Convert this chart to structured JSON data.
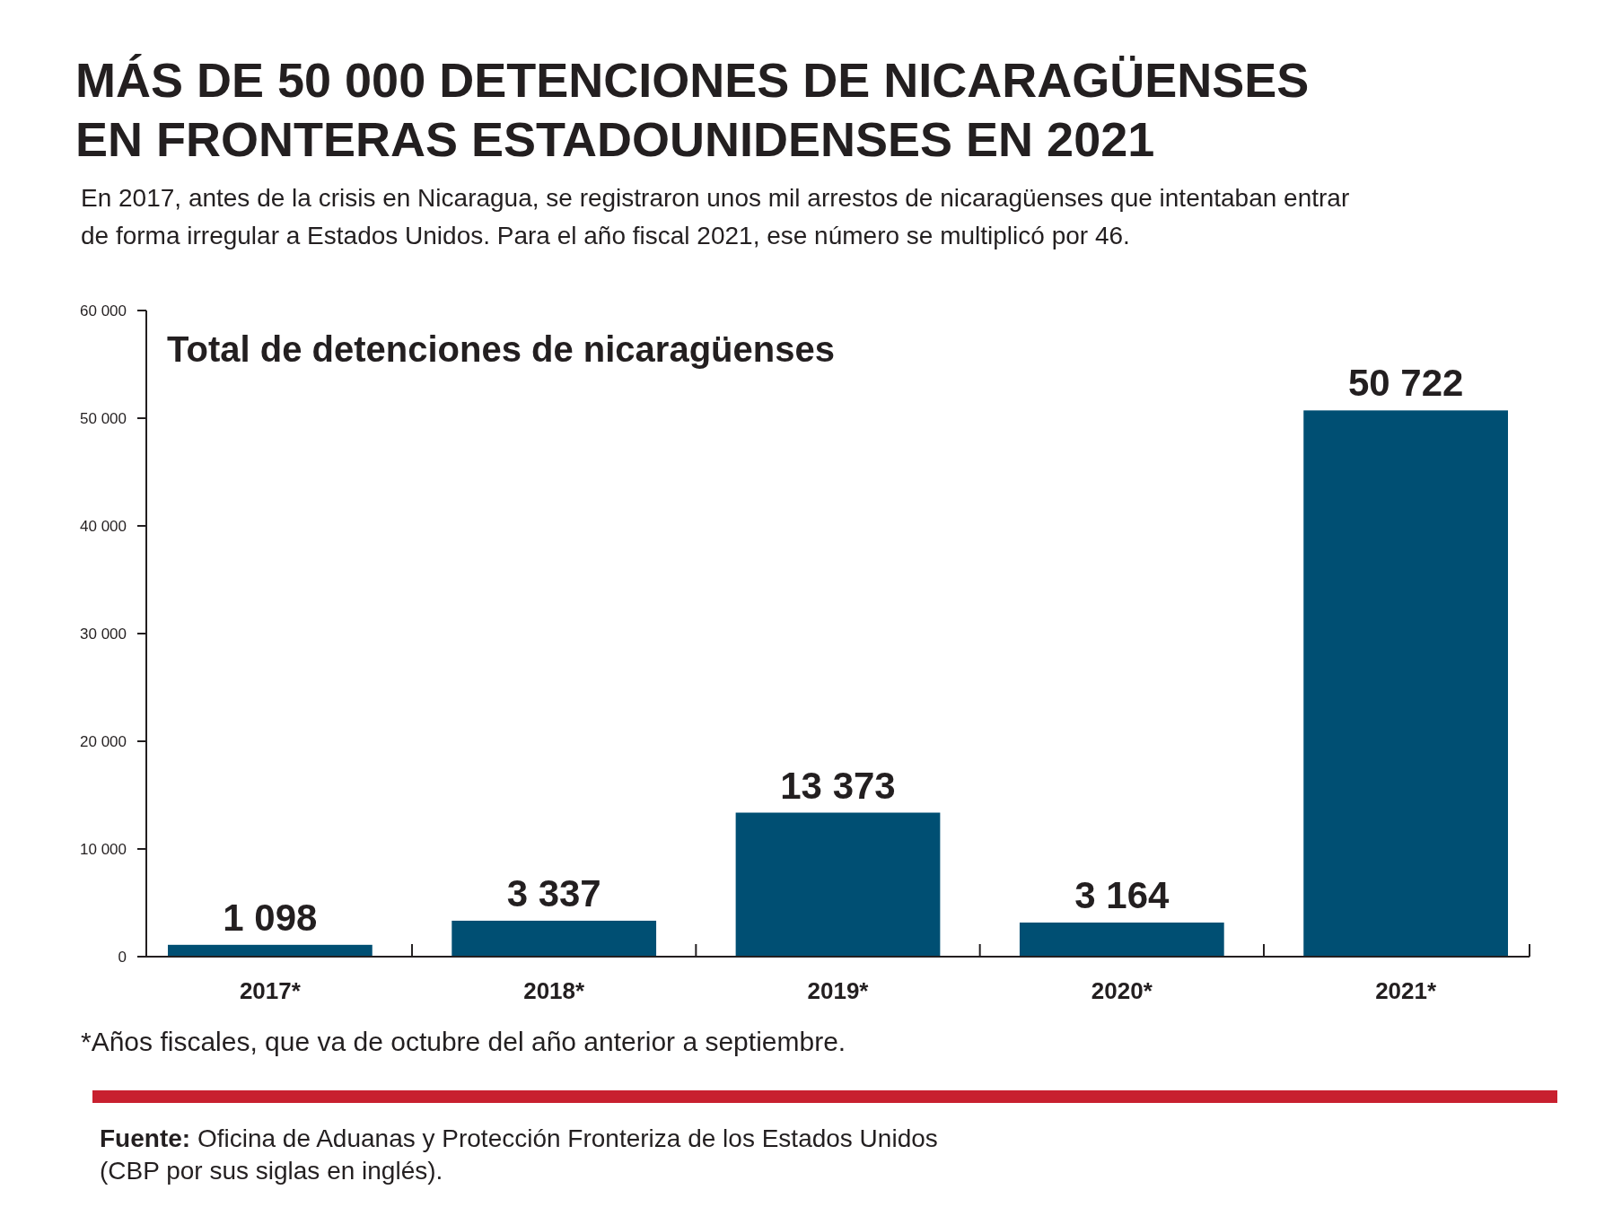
{
  "chart_data": {
    "type": "bar",
    "title": "MÁS DE 50 000 DETENCIONES DE NICARAGÜENSES EN FRONTERAS ESTADOUNIDENSES EN 2021",
    "subtitle": "En 2017, antes de la crisis en Nicaragua, se registraron unos mil arrestos de nicaragüenses que intentaban entrar de forma irregular a Estados Unidos. Para el año fiscal 2021, ese número se multiplicó por 46.",
    "ylabel": "Total de detenciones de nicaragüenses",
    "categories": [
      "2017*",
      "2018*",
      "2019*",
      "2020*",
      "2021*"
    ],
    "values": [
      1098,
      3337,
      13373,
      3164,
      50722
    ],
    "value_labels": [
      "1 098",
      "3 337",
      "13 373",
      "3 164",
      "50 722"
    ],
    "color": "#004f73",
    "ylim": [
      0,
      60000
    ],
    "yticks": [
      {
        "value": 0,
        "label": "0"
      },
      {
        "value": 10000,
        "label": "10 000"
      },
      {
        "value": 20000,
        "label": "20 000"
      },
      {
        "value": 30000,
        "label": "30 000"
      },
      {
        "value": 40000,
        "label": "40 000"
      },
      {
        "value": 50000,
        "label": "50 000"
      },
      {
        "value": 60000,
        "label": "60 000"
      }
    ],
    "grid": false,
    "annotations": [
      "*Años fiscales, que va de octubre del año anterior a septiembre.",
      "Fuente: Oficina de Aduanas y Protección Fronteriza de los Estados Unidos (CBP por sus siglas en inglés)."
    ]
  }
}
